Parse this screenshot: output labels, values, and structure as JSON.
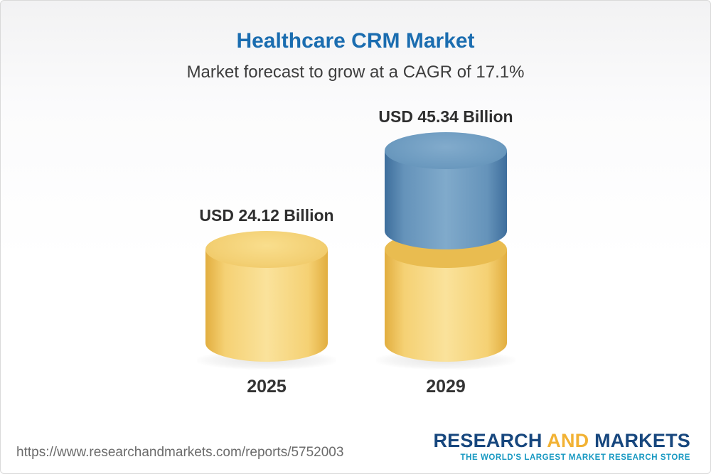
{
  "page": {
    "title": "Healthcare CRM Market",
    "subtitle": "Market forecast to grow at a CAGR of 17.1%"
  },
  "chart_data": {
    "type": "bar",
    "style": "3d-cylinder",
    "title": "Healthcare CRM Market",
    "subtitle": "Market forecast to grow at a CAGR of 17.1%",
    "cagr_percent": 17.1,
    "categories": [
      "2025",
      "2029"
    ],
    "values": [
      24.12,
      45.34
    ],
    "value_labels": [
      "USD 24.12 Billion",
      "USD 45.34 Billion"
    ],
    "unit": "USD Billion",
    "ylim": [
      0,
      50
    ],
    "grid": false,
    "legend": false,
    "colors": {
      "base_segment": "#f3cd6b",
      "growth_segment": "#5585ad",
      "title_text": "#1b6db0",
      "label_text": "#2e2e2e"
    }
  },
  "footer": {
    "url": "https://www.researchandmarkets.com/reports/5752003",
    "logo": {
      "word1": "RESEARCH",
      "word2": "AND",
      "word3": "MARKETS",
      "tagline": "THE WORLD'S LARGEST MARKET RESEARCH STORE"
    }
  }
}
